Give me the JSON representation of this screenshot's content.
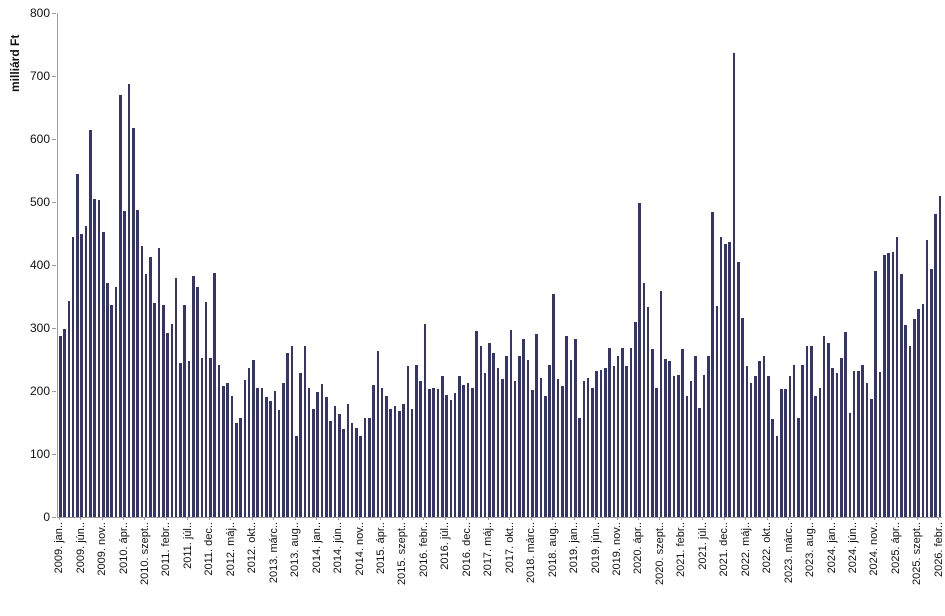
{
  "chart_data": {
    "type": "bar",
    "title": "",
    "ylabel": "milliárd Ft",
    "xlabel": "",
    "ylim": [
      0,
      800
    ],
    "yticks": [
      0,
      100,
      200,
      300,
      400,
      500,
      600,
      700,
      800
    ],
    "grid": false,
    "legend": false,
    "bar_color": "#35356B",
    "axis_color": "#9c9c9c",
    "x_range_start": "2009. jan",
    "x_range_end": "2026. febr",
    "x_label_every": 5,
    "x_labels": [
      "2009. jan..",
      "2009. jún..",
      "2009. nov..",
      "2010. ápr..",
      "2010. szept..",
      "2011. febr..",
      "2011. júl..",
      "2011. dec..",
      "2012. máj..",
      "2012. okt..",
      "2013. márc..",
      "2013. aug..",
      "2014. jan..",
      "2014. jún..",
      "2014. nov..",
      "2015. ápr..",
      "2015. szept..",
      "2016. febr..",
      "2016. júl..",
      "2016. dec..",
      "2017. máj..",
      "2017. okt..",
      "2018. márc..",
      "2018. aug..",
      "2019. jan..",
      "2019. jún..",
      "2019. nov..",
      "2020. ápr..",
      "2020. szept..",
      "2021. febr..",
      "2021. júl..",
      "2021. dec..",
      "2022. máj..",
      "2022. okt..",
      "2023. márc..",
      "2023. aug..",
      "2024. jan..",
      "2024. jún..",
      "2024. nov..",
      "2025. ápr..",
      "2025. szept..",
      "2026. febr.."
    ],
    "values": [
      287,
      298,
      343,
      445,
      545,
      450,
      462,
      614,
      505,
      503,
      452,
      372,
      337,
      365,
      670,
      485,
      687,
      618,
      487,
      430,
      385,
      412,
      340,
      427,
      337,
      292,
      307,
      380,
      245,
      337,
      247,
      383,
      365,
      253,
      342,
      253,
      388,
      242,
      208,
      213,
      192,
      149,
      157,
      218,
      237,
      250,
      205,
      204,
      190,
      184,
      200,
      170,
      212,
      261,
      272,
      128,
      228,
      272,
      204,
      172,
      199,
      211,
      190,
      152,
      177,
      163,
      139,
      180,
      150,
      141,
      128,
      157,
      157,
      210,
      264,
      205,
      192,
      171,
      176,
      168,
      179,
      240,
      171,
      242,
      216,
      306,
      203,
      205,
      203,
      224,
      194,
      186,
      197,
      224,
      210,
      213,
      205,
      295,
      272,
      229,
      277,
      261,
      237,
      219,
      256,
      297,
      216,
      256,
      282,
      250,
      202,
      290,
      221,
      192,
      242,
      354,
      219,
      208,
      288,
      250,
      283,
      157,
      216,
      221,
      205,
      232,
      234,
      237,
      269,
      240,
      255,
      269,
      240,
      269,
      309,
      499,
      372,
      333,
      266,
      205,
      358,
      251,
      248,
      224,
      226,
      266,
      192,
      216,
      256,
      173,
      226,
      255,
      484,
      335,
      444,
      433,
      436,
      736,
      404,
      316,
      239,
      213,
      224,
      248,
      256,
      224,
      155,
      128,
      203,
      203,
      224,
      242,
      157,
      242,
      272,
      272,
      192,
      205,
      288,
      277,
      237,
      229,
      253,
      294,
      165,
      232,
      232,
      242,
      213,
      187,
      391,
      230,
      416,
      419,
      421,
      444,
      386,
      305,
      271,
      314,
      330,
      338,
      439,
      394,
      481,
      509
    ]
  }
}
